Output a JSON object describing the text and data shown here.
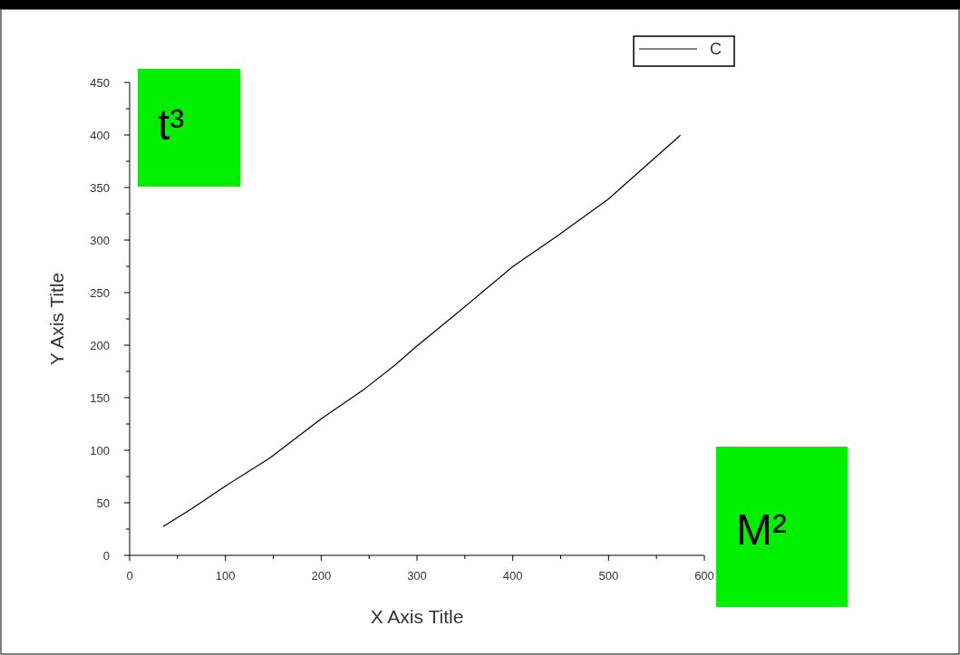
{
  "chart_data": {
    "type": "line",
    "xlabel": "X Axis Title",
    "ylabel": "Y Axis Title",
    "series": [
      {
        "name": "C",
        "color": "#000000",
        "x": [
          34.9,
          63.4,
          99,
          146.5,
          200,
          245.5,
          277,
          299,
          344.6,
          400,
          447.5,
          499.8,
          575
        ],
        "values": [
          27.3,
          43.6,
          65.4,
          92.7,
          130,
          158.5,
          181,
          198.5,
          232.6,
          274.8,
          304.6,
          339,
          399.8
        ]
      }
    ],
    "xlim": [
      0,
      600
    ],
    "xticks": [
      0,
      {
        "value": 50,
        "label": null
      },
      100,
      {
        "value": 150,
        "label": null
      },
      200,
      {
        "value": 250,
        "label": null
      },
      300,
      {
        "value": 350,
        "label": null
      },
      400,
      {
        "value": 450,
        "label": null
      },
      500,
      {
        "value": 550,
        "label": null
      },
      600
    ],
    "ylim": [
      0,
      450
    ],
    "yticks": [
      0,
      {
        "value": 25,
        "label": null
      },
      50,
      {
        "value": 75,
        "label": null
      },
      100,
      {
        "value": 125,
        "label": null
      },
      150,
      {
        "value": 175,
        "label": null
      },
      200,
      {
        "value": 225,
        "label": null
      },
      250,
      {
        "value": 275,
        "label": null
      },
      300,
      {
        "value": 325,
        "label": null
      },
      350,
      {
        "value": 375,
        "label": null
      },
      400,
      {
        "value": 425,
        "label": null
      },
      450
    ],
    "legend": "top right",
    "marker": "none",
    "line_style": "solid",
    "annotations": [
      "t³",
      "M²"
    ]
  }
}
